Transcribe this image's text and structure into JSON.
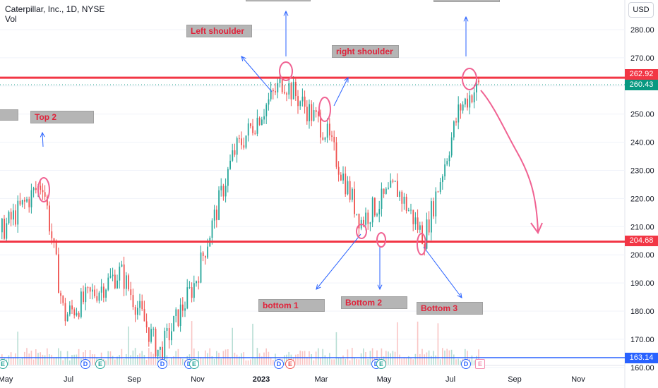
{
  "legend": {
    "title": "Caterpillar, Inc., 1D, NYSE",
    "sub": "Vol"
  },
  "currency": "USD",
  "annotations": {
    "left_shoulder": "Left shoulder",
    "right_shoulder": "right shoulder",
    "top2": "Top 2",
    "bottom1": "bottom 1",
    "bottom2": "Bottom 2",
    "bottom3": "Bottom 3"
  },
  "price_badges": {
    "resistance": "262.92",
    "last": "260.43",
    "support": "204.68",
    "volume_line": "163.14"
  },
  "events": {
    "dividend": "D",
    "earnings": "E"
  },
  "colors": {
    "up": "#26a69a",
    "down": "#ef5350",
    "line": "#f23645",
    "arrow": "#2962ff",
    "highlight": "#f06292"
  },
  "chart_data": {
    "type": "candlestick",
    "title": "Caterpillar, Inc., 1D, NYSE",
    "y_axis": {
      "ticks": [
        160,
        170,
        180,
        190,
        200,
        210,
        220,
        230,
        240,
        250,
        260,
        270,
        280
      ],
      "tick_labels": [
        "160.00",
        "170.00",
        "180.00",
        "190.00",
        "200.00",
        "210.00",
        "220.00",
        "230.00",
        "240.00",
        "250.00",
        "260.00",
        "270.00",
        "280.00"
      ],
      "ylim": [
        159,
        289
      ]
    },
    "x_axis": {
      "tick_labels": [
        "May",
        "Jul",
        "Sep",
        "Nov",
        "2023",
        "Mar",
        "May",
        "Jul",
        "Sep",
        "Nov"
      ]
    },
    "horizontal_lines": [
      {
        "price": 262.92,
        "label": "262.92"
      },
      {
        "price": 204.68,
        "label": "204.68"
      }
    ],
    "last_price": 260.43,
    "key_points": [
      {
        "date": "2022-05",
        "close": 207
      },
      {
        "date": "2022-06",
        "close": 220
      },
      {
        "date": "2022-07",
        "close": 178
      },
      {
        "date": "2022-08",
        "close": 194
      },
      {
        "date": "2022-09",
        "close": 165
      },
      {
        "date": "2022-10",
        "close": 190
      },
      {
        "date": "2022-11",
        "close": 236
      },
      {
        "date": "2022-12",
        "close": 238
      },
      {
        "date": "2023-01",
        "close": 262
      },
      {
        "date": "2023-02",
        "close": 242
      },
      {
        "date": "2023-03",
        "close": 215
      },
      {
        "date": "2023-04",
        "close": 212
      },
      {
        "date": "2023-05",
        "close": 208
      },
      {
        "date": "2023-06",
        "close": 246
      },
      {
        "date": "2023-07",
        "close": 260
      }
    ],
    "volume_level": 163.14
  }
}
